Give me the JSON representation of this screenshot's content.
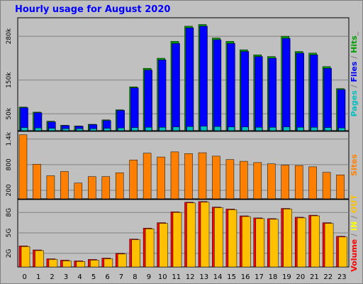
{
  "title": "Hourly usage for August 2020",
  "chart_data": {
    "type": "bar",
    "categories": [
      "0",
      "1",
      "2",
      "3",
      "4",
      "5",
      "6",
      "7",
      "8",
      "9",
      "10",
      "11",
      "12",
      "13",
      "14",
      "15",
      "16",
      "17",
      "18",
      "19",
      "20",
      "21",
      "22",
      "23"
    ],
    "panels": [
      {
        "yticks": [
          {
            "label": "50k",
            "value": 50000
          },
          {
            "label": "150k",
            "value": 150000
          },
          {
            "label": "280k",
            "value": 280000
          }
        ],
        "ymax": 335000,
        "legend": [
          {
            "text": "Pages",
            "color": "#00c0c0"
          },
          {
            "text": " / ",
            "color": "#808080"
          },
          {
            "text": "Files",
            "color": "#0000ff"
          },
          {
            "text": " / ",
            "color": "#808080"
          },
          {
            "text": "Hits",
            "color": "#00a000"
          },
          {
            "text": "_",
            "color": "#808080"
          }
        ],
        "series": [
          {
            "name": "Hits",
            "color": "#00a000",
            "values": [
              70000,
              55000,
              28000,
              16000,
              14000,
              19000,
              32000,
              62000,
              130000,
              185000,
              215000,
              265000,
              310000,
              315000,
              275000,
              265000,
              240000,
              225000,
              220000,
              280000,
              235000,
              230000,
              190000,
              125000
            ]
          },
          {
            "name": "Files",
            "color": "#0000ff",
            "values": [
              68000,
              53000,
              26000,
              15000,
              13000,
              18000,
              30000,
              60000,
              127000,
              180000,
              210000,
              259000,
              305000,
              310000,
              270000,
              259000,
              235000,
              220000,
              215000,
              274000,
              230000,
              225000,
              185000,
              122000
            ]
          },
          {
            "name": "Pages",
            "color": "#00c0c0",
            "values": [
              9000,
              8000,
              7000,
              6000,
              6000,
              6000,
              7000,
              8000,
              9000,
              10000,
              10000,
              11000,
              12000,
              13000,
              12000,
              11000,
              11000,
              10000,
              10000,
              11000,
              10000,
              10000,
              9000,
              8000
            ]
          }
        ]
      },
      {
        "yticks": [
          {
            "label": "200",
            "value": 200
          },
          {
            "label": "800",
            "value": 800
          },
          {
            "label": "1.4k",
            "value": 1400
          }
        ],
        "ymax": 1580,
        "legend": [
          {
            "text": "Sites",
            "color": "#ff8000"
          }
        ],
        "series": [
          {
            "name": "Sites",
            "color": "#ff8000",
            "values": [
              1500,
              810,
              540,
              640,
              370,
              520,
              520,
              610,
              910,
              1070,
              980,
              1100,
              1060,
              1080,
              1000,
              920,
              880,
              850,
              820,
              790,
              780,
              750,
              620,
              560
            ]
          }
        ]
      },
      {
        "yticks": [
          {
            "label": "2G",
            "value": 2
          },
          {
            "label": "5G",
            "value": 5
          },
          {
            "label": "8G",
            "value": 8
          }
        ],
        "ymax": 9.9,
        "legend": [
          {
            "text": "Volume",
            "color": "#ff0000"
          },
          {
            "text": " / ",
            "color": "#808080"
          },
          {
            "text": "IN",
            "color": "#ffff00"
          },
          {
            "text": " / ",
            "color": "#808080"
          },
          {
            "text": "OUT",
            "color": "#ffc000"
          },
          {
            "text": " ",
            "color": "#808080"
          }
        ],
        "series": [
          {
            "name": "Volume",
            "color": "#ff0000",
            "values": [
              3.1,
              2.5,
              1.2,
              1.0,
              0.9,
              1.1,
              1.3,
              2.0,
              4.1,
              5.7,
              6.5,
              8.1,
              9.5,
              9.6,
              8.8,
              8.5,
              7.5,
              7.2,
              7.1,
              8.6,
              7.3,
              7.6,
              6.5,
              4.5
            ]
          },
          {
            "name": "OUT",
            "color": "#ffc000",
            "values": [
              3.0,
              2.4,
              1.1,
              0.9,
              0.8,
              1.0,
              1.2,
              1.9,
              4.0,
              5.6,
              6.4,
              8.0,
              9.4,
              9.5,
              8.7,
              8.4,
              7.4,
              7.1,
              7.0,
              8.5,
              7.2,
              7.5,
              6.4,
              4.4
            ]
          }
        ]
      }
    ]
  }
}
